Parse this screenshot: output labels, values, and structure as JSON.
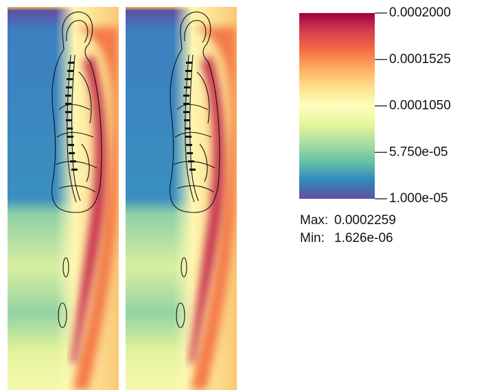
{
  "chart_data": {
    "type": "heatmap",
    "colormap": [
      "#5e4fa2",
      "#3288bd",
      "#66c2a5",
      "#abdda4",
      "#e6f598",
      "#ffffbf",
      "#fee08b",
      "#fdae61",
      "#f46d43",
      "#d53e4f",
      "#9e0142"
    ],
    "ylim": [
      1e-05,
      0.0002
    ],
    "yticks": [
      {
        "value": 0.0002,
        "label": "0.0002000"
      },
      {
        "value": 0.0001525,
        "label": "0.0001525"
      },
      {
        "value": 0.000105,
        "label": "0.0001050"
      },
      {
        "value": 5.75e-05,
        "label": "5.750e-05"
      },
      {
        "value": 1e-05,
        "label": "1.000e-05"
      }
    ],
    "stats": {
      "labels": [
        "Max:",
        "Min:"
      ],
      "values": [
        0.0002259,
        1.626e-06
      ],
      "value_labels": [
        "0.0002259",
        "1.626e-06"
      ]
    }
  }
}
